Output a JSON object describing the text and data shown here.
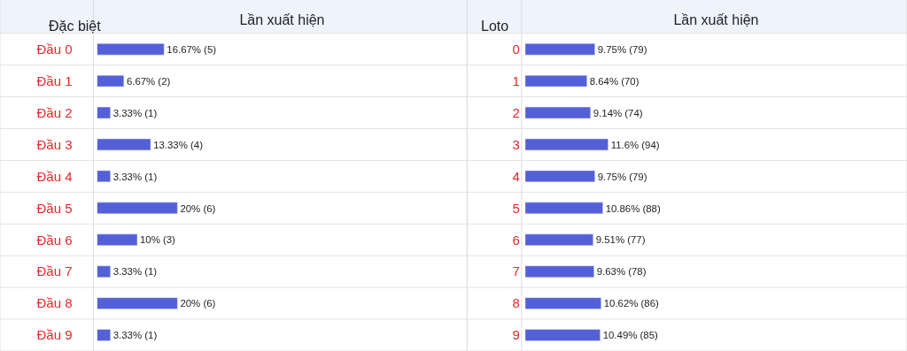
{
  "chart_data": [
    {
      "type": "bar",
      "orientation": "horizontal",
      "ylabel": "Đặc biệt",
      "xlabel": "Lần xuất hiện",
      "categories": [
        "Đầu 0",
        "Đầu 1",
        "Đầu 2",
        "Đầu 3",
        "Đầu 4",
        "Đầu 5",
        "Đầu 6",
        "Đầu 7",
        "Đầu 8",
        "Đầu 9"
      ],
      "values": [
        16.67,
        6.67,
        3.33,
        13.33,
        3.33,
        20,
        10,
        3.33,
        20,
        3.33
      ],
      "value_labels": [
        "16.67% (5)",
        "6.67% (2)",
        "3.33% (1)",
        "13.33% (4)",
        "3.33% (1)",
        "20% (6)",
        "10% (3)",
        "3.33% (1)",
        "20% (6)",
        "3.33% (1)"
      ],
      "color": "#5460d8"
    },
    {
      "type": "bar",
      "orientation": "horizontal",
      "ylabel": "Loto",
      "xlabel": "Lần xuất hiện",
      "categories": [
        "0",
        "1",
        "2",
        "3",
        "4",
        "5",
        "6",
        "7",
        "8",
        "9"
      ],
      "values": [
        9.75,
        8.64,
        9.14,
        11.6,
        9.75,
        10.86,
        9.51,
        9.63,
        10.62,
        10.49
      ],
      "value_labels": [
        "9.75% (79)",
        "8.64% (70)",
        "9.14% (74)",
        "11.6% (94)",
        "9.75% (79)",
        "10.86% (88)",
        "9.51% (77)",
        "9.63% (78)",
        "10.62% (86)",
        "10.49% (85)"
      ],
      "color": "#5460d8"
    }
  ]
}
